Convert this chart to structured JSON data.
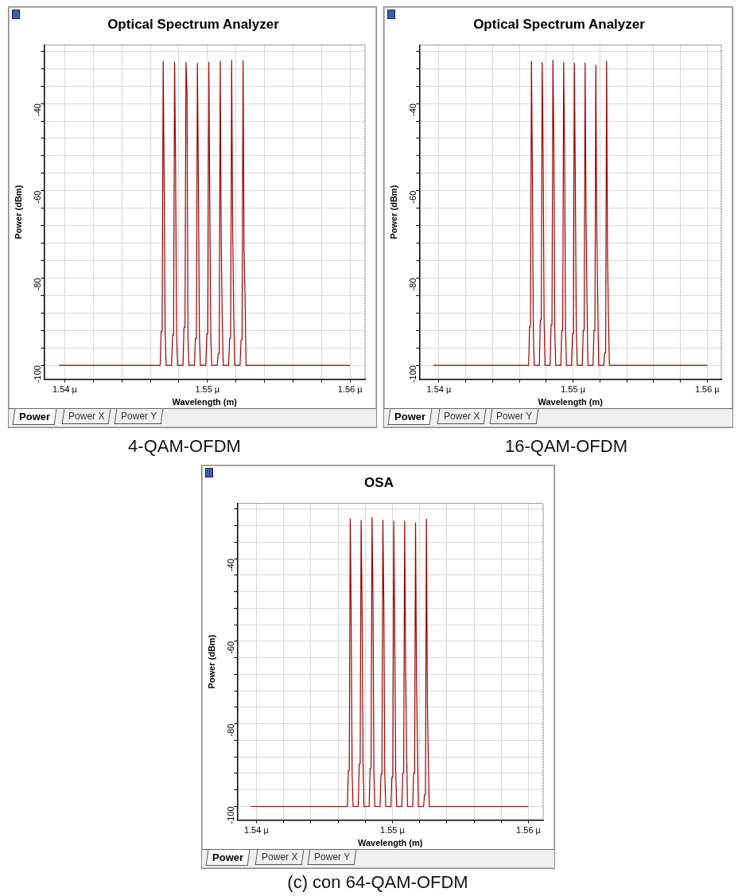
{
  "chart_data": [
    {
      "type": "line",
      "title": "Optical Spectrum Analyzer",
      "xlabel": "Wavelength (m)",
      "ylabel": "Power (dBm)",
      "grid": true,
      "legend": false,
      "marker": "none",
      "line_style": "solid",
      "xlim": [
        1.53855,
        1.56105
      ],
      "ylim": [
        -103.2,
        -26.6
      ],
      "xticks": [
        {
          "value": 1.54,
          "label": "1.54 µ"
        },
        {
          "value": 1.542,
          "label": null
        },
        {
          "value": 1.544,
          "label": null
        },
        {
          "value": 1.546,
          "label": null
        },
        {
          "value": 1.548,
          "label": null
        },
        {
          "value": 1.55,
          "label": "1.55 µ"
        },
        {
          "value": 1.552,
          "label": null
        },
        {
          "value": 1.554,
          "label": null
        },
        {
          "value": 1.556,
          "label": null
        },
        {
          "value": 1.558,
          "label": null
        },
        {
          "value": 1.56,
          "label": "1.56 µ"
        }
      ],
      "yticks": [
        -100,
        {
          "value": -96,
          "label": null
        },
        {
          "value": -92,
          "label": null
        },
        {
          "value": -88,
          "label": null
        },
        {
          "value": -84,
          "label": null
        },
        -80,
        {
          "value": -76,
          "label": null
        },
        {
          "value": -72,
          "label": null
        },
        {
          "value": -68,
          "label": null
        },
        {
          "value": -64,
          "label": null
        },
        -60,
        {
          "value": -56,
          "label": null
        },
        {
          "value": -52,
          "label": null
        },
        {
          "value": -48,
          "label": null
        },
        {
          "value": -44,
          "label": null
        },
        -40,
        {
          "value": -36,
          "label": null
        },
        {
          "value": -32,
          "label": null
        },
        {
          "value": -28,
          "label": null
        }
      ],
      "x": [
        1.5396,
        1.54669,
        1.54676,
        1.54683,
        1.5469,
        1.54697,
        1.54704,
        1.54711,
        1.54749,
        1.54756,
        1.54763,
        1.5477,
        1.54777,
        1.54784,
        1.54791,
        1.54829,
        1.54836,
        1.54843,
        1.5485,
        1.54857,
        1.54864,
        1.54871,
        1.54909,
        1.54916,
        1.54923,
        1.5493,
        1.54937,
        1.54944,
        1.54951,
        1.54989,
        1.54996,
        1.55003,
        1.5501,
        1.55017,
        1.55024,
        1.55031,
        1.55069,
        1.55076,
        1.55083,
        1.5509,
        1.55097,
        1.55104,
        1.55111,
        1.55149,
        1.55156,
        1.55163,
        1.5517,
        1.55177,
        1.55184,
        1.55191,
        1.55229,
        1.55236,
        1.55243,
        1.5525,
        1.55257,
        1.55264,
        1.55271,
        1.56
      ],
      "series": [
        {
          "color": "#9b0000",
          "values": [
            -100,
            -100,
            -92.2,
            -92.2,
            -30.3,
            -57.8,
            -93,
            -100,
            -100,
            -93.1,
            -93.1,
            -30.5,
            -54.1,
            -93,
            -100,
            -100,
            -91.3,
            -91.3,
            -30.5,
            -37.4,
            -94,
            -100,
            -100,
            -93.8,
            -93.8,
            -30.8,
            -58.3,
            -93,
            -100,
            -100,
            -92.8,
            -92.8,
            -30.5,
            -63.7,
            -93.8,
            -100,
            -100,
            -97.3,
            -97.3,
            -30.3,
            -71.5,
            -89.6,
            -100,
            -100,
            -93.8,
            -93.8,
            -30.1,
            -68,
            -87,
            -100,
            -100,
            -94.2,
            -94.2,
            -30.2,
            -73.7,
            -84.2,
            -100,
            -100
          ]
        }
      ],
      "annotations": [
        "Power",
        "Power X",
        "Power Y",
        "4-QAM-OFDM"
      ]
    },
    {
      "type": "line",
      "title": "Optical Spectrum Analyzer",
      "xlabel": "Wavelength (m)",
      "ylabel": "Power (dBm)",
      "grid": true,
      "legend": false,
      "marker": "none",
      "line_style": "solid",
      "xlim": [
        1.53855,
        1.56105
      ],
      "ylim": [
        -103.2,
        -26.6
      ],
      "xticks": [
        {
          "value": 1.54,
          "label": "1.54 µ"
        },
        {
          "value": 1.542,
          "label": null
        },
        {
          "value": 1.544,
          "label": null
        },
        {
          "value": 1.546,
          "label": null
        },
        {
          "value": 1.548,
          "label": null
        },
        {
          "value": 1.55,
          "label": "1.55 µ"
        },
        {
          "value": 1.552,
          "label": null
        },
        {
          "value": 1.554,
          "label": null
        },
        {
          "value": 1.556,
          "label": null
        },
        {
          "value": 1.558,
          "label": null
        },
        {
          "value": 1.56,
          "label": "1.56 µ"
        }
      ],
      "yticks": [
        -100,
        {
          "value": -96,
          "label": null
        },
        {
          "value": -92,
          "label": null
        },
        {
          "value": -88,
          "label": null
        },
        {
          "value": -84,
          "label": null
        },
        -80,
        {
          "value": -76,
          "label": null
        },
        {
          "value": -72,
          "label": null
        },
        {
          "value": -68,
          "label": null
        },
        {
          "value": -64,
          "label": null
        },
        -60,
        {
          "value": -56,
          "label": null
        },
        {
          "value": -52,
          "label": null
        },
        {
          "value": -48,
          "label": null
        },
        {
          "value": -44,
          "label": null
        },
        -40,
        {
          "value": -36,
          "label": null
        },
        {
          "value": -32,
          "label": null
        },
        {
          "value": -28,
          "label": null
        }
      ],
      "x": [
        1.5396,
        1.54669,
        1.54676,
        1.54683,
        1.5469,
        1.54697,
        1.54704,
        1.54711,
        1.54749,
        1.54756,
        1.54763,
        1.5477,
        1.54777,
        1.54784,
        1.54791,
        1.54829,
        1.54836,
        1.54843,
        1.5485,
        1.54857,
        1.54864,
        1.54871,
        1.54909,
        1.54916,
        1.54923,
        1.5493,
        1.54937,
        1.54944,
        1.54951,
        1.54989,
        1.54996,
        1.55003,
        1.5501,
        1.55017,
        1.55024,
        1.55031,
        1.55069,
        1.55076,
        1.55083,
        1.5509,
        1.55097,
        1.55104,
        1.55111,
        1.55149,
        1.55156,
        1.55163,
        1.5517,
        1.55177,
        1.55184,
        1.55191,
        1.55229,
        1.55236,
        1.55243,
        1.5525,
        1.55257,
        1.55264,
        1.55271,
        1.56
      ],
      "series": [
        {
          "color": "#9b0000",
          "values": [
            -100,
            -100,
            -91.2,
            -91.2,
            -30.3,
            -54.8,
            -92.1,
            -100,
            -100,
            -89.6,
            -89.6,
            -30.6,
            -50.7,
            -88.9,
            -100,
            -100,
            -90.7,
            -90.7,
            -30.1,
            -48.9,
            -92.1,
            -100,
            -100,
            -92,
            -92,
            -30.6,
            -51,
            -92,
            -100,
            -100,
            -92.8,
            -92.8,
            -30.7,
            -57.8,
            -90.7,
            -100,
            -100,
            -92,
            -92,
            -30.7,
            -65.8,
            -85.8,
            -100,
            -100,
            -92,
            -92,
            -31.3,
            -68.7,
            -85,
            -100,
            -100,
            -97.1,
            -97.1,
            -30.3,
            -74.6,
            -88.9,
            -100,
            -100
          ]
        }
      ],
      "annotations": [
        "Power",
        "Power X",
        "Power Y",
        "16-QAM-OFDM"
      ]
    },
    {
      "type": "line",
      "title": "OSA",
      "xlabel": "Wavelength (m)",
      "ylabel": "Power (dBm)",
      "grid": true,
      "legend": false,
      "marker": "none",
      "line_style": "solid",
      "xlim": [
        1.5386,
        1.56108
      ],
      "ylim": [
        -103.3,
        -26.6
      ],
      "xticks": [
        {
          "value": 1.54,
          "label": "1.54 µ"
        },
        {
          "value": 1.542,
          "label": null
        },
        {
          "value": 1.544,
          "label": null
        },
        {
          "value": 1.546,
          "label": null
        },
        {
          "value": 1.548,
          "label": null
        },
        {
          "value": 1.55,
          "label": "1.55 µ"
        },
        {
          "value": 1.552,
          "label": null
        },
        {
          "value": 1.554,
          "label": null
        },
        {
          "value": 1.556,
          "label": null
        },
        {
          "value": 1.558,
          "label": null
        },
        {
          "value": 1.56,
          "label": "1.56 µ"
        }
      ],
      "yticks": [
        -100,
        {
          "value": -96,
          "label": null
        },
        {
          "value": -92,
          "label": null
        },
        {
          "value": -88,
          "label": null
        },
        {
          "value": -84,
          "label": null
        },
        -80,
        {
          "value": -76,
          "label": null
        },
        {
          "value": -72,
          "label": null
        },
        {
          "value": -68,
          "label": null
        },
        {
          "value": -64,
          "label": null
        },
        -60,
        {
          "value": -56,
          "label": null
        },
        {
          "value": -52,
          "label": null
        },
        {
          "value": -48,
          "label": null
        },
        {
          "value": -44,
          "label": null
        },
        -40,
        {
          "value": -36,
          "label": null
        },
        {
          "value": -32,
          "label": null
        },
        {
          "value": -28,
          "label": null
        }
      ],
      "x": [
        1.5396,
        1.54669,
        1.54676,
        1.54683,
        1.5469,
        1.54697,
        1.54704,
        1.54711,
        1.54749,
        1.54756,
        1.54763,
        1.5477,
        1.54777,
        1.54784,
        1.54791,
        1.54829,
        1.54836,
        1.54843,
        1.5485,
        1.54857,
        1.54864,
        1.54871,
        1.54909,
        1.54916,
        1.54923,
        1.5493,
        1.54937,
        1.54944,
        1.54951,
        1.54989,
        1.54996,
        1.55003,
        1.5501,
        1.55017,
        1.55024,
        1.55031,
        1.55069,
        1.55076,
        1.55083,
        1.5509,
        1.55097,
        1.55104,
        1.55111,
        1.55149,
        1.55156,
        1.55163,
        1.5517,
        1.55177,
        1.55184,
        1.55191,
        1.55229,
        1.55236,
        1.55243,
        1.5525,
        1.55257,
        1.55264,
        1.55271,
        1.56
      ],
      "series": [
        {
          "color": "#9b0000",
          "values": [
            -100,
            -100,
            -91.3,
            -91.3,
            -30.4,
            -54.9,
            -92.2,
            -100,
            -100,
            -89.7,
            -89.7,
            -30.7,
            -50.8,
            -89,
            -100,
            -100,
            -90.8,
            -90.8,
            -30,
            -49,
            -92.2,
            -100,
            -100,
            -92.2,
            -92.2,
            -30.7,
            -51.1,
            -92.2,
            -100,
            -100,
            -92.9,
            -92.9,
            -30.9,
            -57.8,
            -90.8,
            -100,
            -100,
            -91.9,
            -91.9,
            -30.9,
            -65.8,
            -85.8,
            -100,
            -100,
            -91.9,
            -91.9,
            -31.3,
            -68.7,
            -85.1,
            -100,
            -100,
            -97.2,
            -97.2,
            -30.4,
            -74.6,
            -89,
            -100,
            -100
          ]
        }
      ],
      "annotations": [
        "Power",
        "Power X",
        "Power Y",
        "(c) con 64-QAM-OFDM"
      ]
    }
  ]
}
